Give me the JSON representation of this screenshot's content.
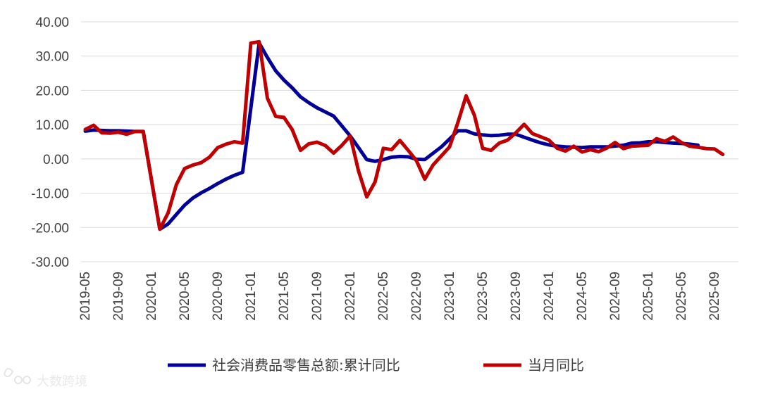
{
  "chart_data": {
    "type": "line",
    "title": "",
    "xlabel": "",
    "ylabel": "",
    "ylim": [
      -30,
      40
    ],
    "ytick_step": 10,
    "grid": true,
    "legend_position": "bottom",
    "yticks": [
      "40.00",
      "30.00",
      "20.00",
      "10.00",
      "0.00",
      "-10.00",
      "-20.00",
      "-30.00"
    ],
    "x_start": "2019-05",
    "xtick_labels": [
      "2019-05",
      "2019-09",
      "2020-01",
      "2020-05",
      "2020-09",
      "2021-01",
      "2021-05",
      "2021-09",
      "2022-01",
      "2022-05",
      "2022-09",
      "2023-01",
      "2023-05",
      "2023-09",
      "2024-01",
      "2024-05",
      "2024-09",
      "2025-01",
      "2025-05",
      "2025-09"
    ],
    "series": [
      {
        "name": "社会消费品零售总额:累计同比",
        "color": "#000099",
        "points": [
          [
            0,
            8.1
          ],
          [
            1,
            8.4
          ],
          [
            2,
            8.3
          ],
          [
            3,
            8.2
          ],
          [
            4,
            8.2
          ],
          [
            5,
            8.1
          ],
          [
            6,
            8.0
          ],
          [
            7,
            8.0
          ],
          [
            9,
            -20.5
          ],
          [
            10,
            -19.0
          ],
          [
            11,
            -16.2
          ],
          [
            12,
            -13.5
          ],
          [
            13,
            -11.4
          ],
          [
            14,
            -9.9
          ],
          [
            15,
            -8.6
          ],
          [
            16,
            -7.2
          ],
          [
            17,
            -5.9
          ],
          [
            18,
            -4.8
          ],
          [
            19,
            -3.9
          ],
          [
            21,
            33.8
          ],
          [
            22,
            29.6
          ],
          [
            23,
            25.7
          ],
          [
            24,
            23.0
          ],
          [
            25,
            20.7
          ],
          [
            26,
            18.1
          ],
          [
            27,
            16.4
          ],
          [
            28,
            14.9
          ],
          [
            29,
            13.7
          ],
          [
            30,
            12.5
          ],
          [
            32,
            6.7
          ],
          [
            33,
            3.3
          ],
          [
            34,
            -0.2
          ],
          [
            35,
            -0.7
          ],
          [
            36,
            -0.2
          ],
          [
            37,
            0.5
          ],
          [
            38,
            0.7
          ],
          [
            39,
            0.6
          ],
          [
            40,
            -0.1
          ],
          [
            41,
            -0.2
          ],
          [
            43,
            3.5
          ],
          [
            44,
            5.8
          ],
          [
            45,
            8.2
          ],
          [
            46,
            8.2
          ],
          [
            47,
            7.3
          ],
          [
            48,
            7.0
          ],
          [
            49,
            6.8
          ],
          [
            50,
            6.9
          ],
          [
            51,
            7.2
          ],
          [
            52,
            7.2
          ],
          [
            54,
            5.5
          ],
          [
            55,
            4.7
          ],
          [
            56,
            4.1
          ],
          [
            57,
            3.7
          ],
          [
            58,
            3.5
          ],
          [
            59,
            3.4
          ],
          [
            60,
            3.3
          ],
          [
            61,
            3.5
          ],
          [
            62,
            3.5
          ],
          [
            63,
            3.5
          ],
          [
            65,
            4.0
          ],
          [
            66,
            4.6
          ],
          [
            67,
            4.7
          ],
          [
            68,
            5.0
          ],
          [
            69,
            5.0
          ],
          [
            70,
            4.8
          ],
          [
            71,
            4.6
          ],
          [
            72,
            4.5
          ],
          [
            73,
            4.3
          ],
          [
            74,
            4.0
          ]
        ]
      },
      {
        "name": "当月同比",
        "color": "#c00000",
        "points": [
          [
            0,
            8.6
          ],
          [
            1,
            9.8
          ],
          [
            2,
            7.6
          ],
          [
            3,
            7.5
          ],
          [
            4,
            7.8
          ],
          [
            5,
            7.2
          ],
          [
            6,
            8.0
          ],
          [
            7,
            8.0
          ],
          [
            9,
            -20.5
          ],
          [
            10,
            -15.8
          ],
          [
            11,
            -7.5
          ],
          [
            12,
            -2.8
          ],
          [
            13,
            -1.8
          ],
          [
            14,
            -1.1
          ],
          [
            15,
            0.5
          ],
          [
            16,
            3.3
          ],
          [
            17,
            4.3
          ],
          [
            18,
            5.0
          ],
          [
            19,
            4.6
          ],
          [
            20,
            33.8
          ],
          [
            21,
            34.2
          ],
          [
            22,
            17.7
          ],
          [
            23,
            12.4
          ],
          [
            24,
            12.1
          ],
          [
            25,
            8.5
          ],
          [
            26,
            2.5
          ],
          [
            27,
            4.4
          ],
          [
            28,
            4.9
          ],
          [
            29,
            3.9
          ],
          [
            30,
            1.7
          ],
          [
            31,
            4.0
          ],
          [
            32,
            6.7
          ],
          [
            33,
            -3.5
          ],
          [
            34,
            -11.1
          ],
          [
            35,
            -6.7
          ],
          [
            36,
            3.1
          ],
          [
            37,
            2.7
          ],
          [
            38,
            5.4
          ],
          [
            39,
            2.5
          ],
          [
            40,
            -0.5
          ],
          [
            41,
            -5.9
          ],
          [
            42,
            -1.8
          ],
          [
            44,
            3.5
          ],
          [
            45,
            10.6
          ],
          [
            46,
            18.4
          ],
          [
            47,
            12.7
          ],
          [
            48,
            3.1
          ],
          [
            49,
            2.5
          ],
          [
            50,
            4.6
          ],
          [
            51,
            5.5
          ],
          [
            52,
            7.6
          ],
          [
            53,
            10.1
          ],
          [
            54,
            7.4
          ],
          [
            56,
            5.5
          ],
          [
            57,
            3.1
          ],
          [
            58,
            2.3
          ],
          [
            59,
            3.7
          ],
          [
            60,
            2.0
          ],
          [
            61,
            2.7
          ],
          [
            62,
            2.1
          ],
          [
            63,
            3.2
          ],
          [
            64,
            4.8
          ],
          [
            65,
            3.0
          ],
          [
            66,
            3.7
          ],
          [
            68,
            4.0
          ],
          [
            69,
            5.9
          ],
          [
            70,
            5.1
          ],
          [
            71,
            6.4
          ],
          [
            72,
            4.8
          ],
          [
            73,
            3.7
          ],
          [
            74,
            3.4
          ],
          [
            75,
            3.0
          ],
          [
            76,
            2.9
          ],
          [
            77,
            1.3
          ]
        ]
      }
    ]
  },
  "watermark": {
    "text": "大数跨境",
    "icon": "brand-logo-icon"
  }
}
